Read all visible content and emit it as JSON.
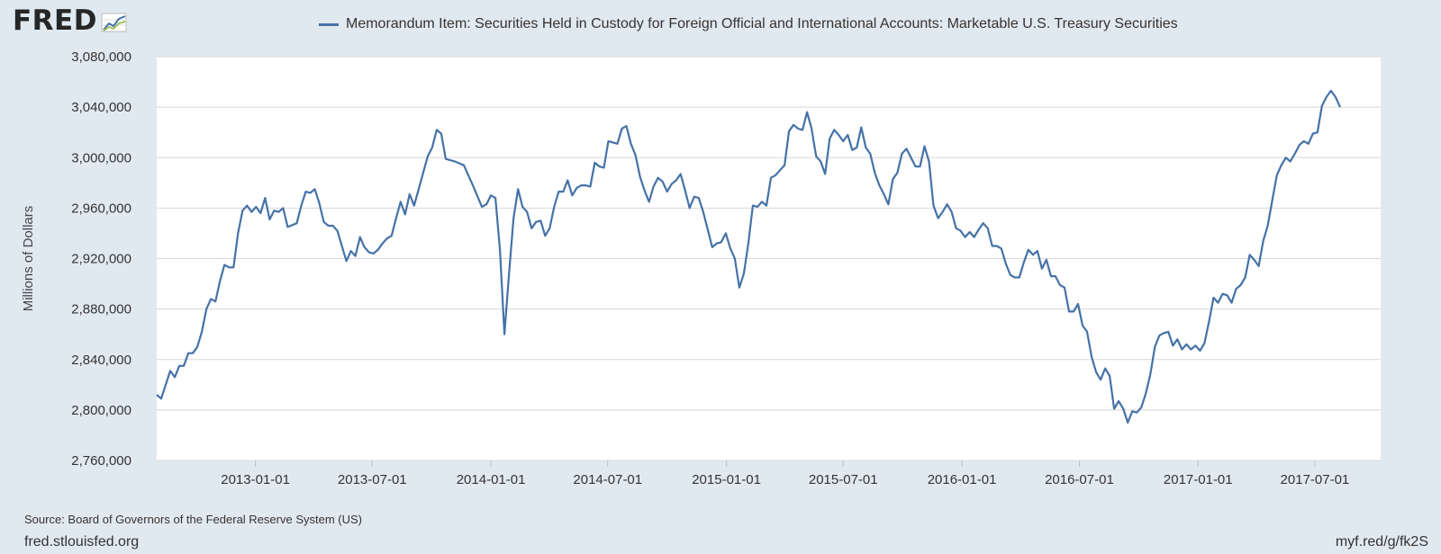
{
  "logo": {
    "text": "FRED"
  },
  "footer": {
    "source": "Source: Board of Governors of the Federal Reserve System (US)",
    "site": "fred.stlouisfed.org",
    "short_url": "myf.red/g/fk2S"
  },
  "colors": {
    "series": "#4572a7",
    "background": "#e1e9f0",
    "plot_background": "#ffffff",
    "grid": "#d8d8d8"
  },
  "chart_data": {
    "type": "line",
    "title": "",
    "legend": "Memorandum Item: Securities Held in Custody for Foreign Official and International Accounts: Marketable U.S. Treasury Securities",
    "legend_position": "top",
    "xlabel": "",
    "ylabel": "Millions of Dollars",
    "ylim": [
      2760000,
      3080000
    ],
    "xlim": [
      "2012-08-01",
      "2017-10-11"
    ],
    "yticks": [
      2760000,
      2800000,
      2840000,
      2880000,
      2920000,
      2960000,
      3000000,
      3040000,
      3080000
    ],
    "ytick_labels": [
      "2,760,000",
      "2,800,000",
      "2,840,000",
      "2,880,000",
      "2,920,000",
      "2,960,000",
      "3,000,000",
      "3,040,000",
      "3,080,000"
    ],
    "xticks": [
      "2013-01-01",
      "2013-07-01",
      "2014-01-01",
      "2014-07-01",
      "2015-01-01",
      "2015-07-01",
      "2016-01-01",
      "2016-07-01",
      "2017-01-01",
      "2017-07-01"
    ],
    "grid": "horizontal",
    "series": [
      {
        "name": "Memorandum Item: Securities Held in Custody for Foreign Official and International Accounts: Marketable U.S. Treasury Securities",
        "points": [
          [
            "2012-08-01",
            2812000
          ],
          [
            "2012-08-08",
            2809000
          ],
          [
            "2012-08-15",
            2820000
          ],
          [
            "2012-08-22",
            2831000
          ],
          [
            "2012-08-29",
            2826000
          ],
          [
            "2012-09-05",
            2835000
          ],
          [
            "2012-09-12",
            2835000
          ],
          [
            "2012-09-19",
            2845000
          ],
          [
            "2012-09-26",
            2845000
          ],
          [
            "2012-10-03",
            2850000
          ],
          [
            "2012-10-10",
            2862000
          ],
          [
            "2012-10-17",
            2880000
          ],
          [
            "2012-10-24",
            2888000
          ],
          [
            "2012-10-31",
            2886000
          ],
          [
            "2012-11-07",
            2902000
          ],
          [
            "2012-11-14",
            2915000
          ],
          [
            "2012-11-21",
            2913000
          ],
          [
            "2012-11-28",
            2913000
          ],
          [
            "2012-12-05",
            2940000
          ],
          [
            "2012-12-12",
            2958000
          ],
          [
            "2012-12-19",
            2962000
          ],
          [
            "2012-12-26",
            2957000
          ],
          [
            "2013-01-02",
            2961000
          ],
          [
            "2013-01-09",
            2956000
          ],
          [
            "2013-01-16",
            2968000
          ],
          [
            "2013-01-23",
            2951000
          ],
          [
            "2013-01-30",
            2958000
          ],
          [
            "2013-02-06",
            2957000
          ],
          [
            "2013-02-13",
            2960000
          ],
          [
            "2013-02-20",
            2945000
          ],
          [
            "2013-03-06",
            2948000
          ],
          [
            "2013-03-13",
            2962000
          ],
          [
            "2013-03-20",
            2973000
          ],
          [
            "2013-03-27",
            2972000
          ],
          [
            "2013-04-03",
            2975000
          ],
          [
            "2013-04-10",
            2964000
          ],
          [
            "2013-04-17",
            2949000
          ],
          [
            "2013-04-24",
            2946000
          ],
          [
            "2013-05-01",
            2946000
          ],
          [
            "2013-05-08",
            2942000
          ],
          [
            "2013-05-15",
            2930000
          ],
          [
            "2013-05-22",
            2918000
          ],
          [
            "2013-05-29",
            2926000
          ],
          [
            "2013-06-05",
            2922000
          ],
          [
            "2013-06-12",
            2937000
          ],
          [
            "2013-06-19",
            2929000
          ],
          [
            "2013-06-26",
            2925000
          ],
          [
            "2013-07-03",
            2924000
          ],
          [
            "2013-07-10",
            2927000
          ],
          [
            "2013-07-17",
            2932000
          ],
          [
            "2013-07-24",
            2936000
          ],
          [
            "2013-07-31",
            2938000
          ],
          [
            "2013-08-07",
            2952000
          ],
          [
            "2013-08-14",
            2965000
          ],
          [
            "2013-08-21",
            2955000
          ],
          [
            "2013-08-28",
            2971000
          ],
          [
            "2013-09-04",
            2962000
          ],
          [
            "2013-09-11",
            2975000
          ],
          [
            "2013-09-18",
            2988000
          ],
          [
            "2013-09-25",
            3001000
          ],
          [
            "2013-10-02",
            3008000
          ],
          [
            "2013-10-09",
            3022000
          ],
          [
            "2013-10-16",
            3019000
          ],
          [
            "2013-10-23",
            2999000
          ],
          [
            "2013-11-06",
            2997000
          ],
          [
            "2013-11-20",
            2994000
          ],
          [
            "2013-12-04",
            2978000
          ],
          [
            "2013-12-18",
            2961000
          ],
          [
            "2013-12-25",
            2963000
          ],
          [
            "2014-01-01",
            2970000
          ],
          [
            "2014-01-08",
            2968000
          ],
          [
            "2014-01-15",
            2927000
          ],
          [
            "2014-01-22",
            2860000
          ],
          [
            "2014-01-29",
            2908000
          ],
          [
            "2014-02-05",
            2952000
          ],
          [
            "2014-02-12",
            2975000
          ],
          [
            "2014-02-19",
            2961000
          ],
          [
            "2014-02-26",
            2957000
          ],
          [
            "2014-03-05",
            2944000
          ],
          [
            "2014-03-12",
            2949000
          ],
          [
            "2014-03-19",
            2950000
          ],
          [
            "2014-03-26",
            2938000
          ],
          [
            "2014-04-02",
            2944000
          ],
          [
            "2014-04-09",
            2961000
          ],
          [
            "2014-04-16",
            2973000
          ],
          [
            "2014-04-23",
            2973000
          ],
          [
            "2014-04-30",
            2982000
          ],
          [
            "2014-05-07",
            2970000
          ],
          [
            "2014-05-14",
            2976000
          ],
          [
            "2014-05-21",
            2978000
          ],
          [
            "2014-05-28",
            2978000
          ],
          [
            "2014-06-04",
            2977000
          ],
          [
            "2014-06-11",
            2996000
          ],
          [
            "2014-06-18",
            2993000
          ],
          [
            "2014-06-25",
            2992000
          ],
          [
            "2014-07-02",
            3013000
          ],
          [
            "2014-07-09",
            3012000
          ],
          [
            "2014-07-16",
            3011000
          ],
          [
            "2014-07-23",
            3023000
          ],
          [
            "2014-07-30",
            3025000
          ],
          [
            "2014-08-06",
            3011000
          ],
          [
            "2014-08-13",
            3002000
          ],
          [
            "2014-08-20",
            2985000
          ],
          [
            "2014-08-27",
            2974000
          ],
          [
            "2014-09-03",
            2965000
          ],
          [
            "2014-09-10",
            2977000
          ],
          [
            "2014-09-17",
            2984000
          ],
          [
            "2014-09-24",
            2981000
          ],
          [
            "2014-10-01",
            2973000
          ],
          [
            "2014-10-08",
            2979000
          ],
          [
            "2014-10-15",
            2982000
          ],
          [
            "2014-10-22",
            2987000
          ],
          [
            "2014-10-29",
            2974000
          ],
          [
            "2014-11-05",
            2960000
          ],
          [
            "2014-11-12",
            2969000
          ],
          [
            "2014-11-19",
            2968000
          ],
          [
            "2014-11-26",
            2957000
          ],
          [
            "2014-12-03",
            2943000
          ],
          [
            "2014-12-10",
            2929000
          ],
          [
            "2014-12-17",
            2932000
          ],
          [
            "2014-12-24",
            2933000
          ],
          [
            "2014-12-31",
            2940000
          ],
          [
            "2015-01-07",
            2928000
          ],
          [
            "2015-01-14",
            2920000
          ],
          [
            "2015-01-21",
            2897000
          ],
          [
            "2015-01-28",
            2908000
          ],
          [
            "2015-02-04",
            2932000
          ],
          [
            "2015-02-11",
            2962000
          ],
          [
            "2015-02-18",
            2961000
          ],
          [
            "2015-02-25",
            2965000
          ],
          [
            "2015-03-04",
            2962000
          ],
          [
            "2015-03-11",
            2984000
          ],
          [
            "2015-03-18",
            2986000
          ],
          [
            "2015-03-25",
            2990000
          ],
          [
            "2015-04-01",
            2994000
          ],
          [
            "2015-04-08",
            3021000
          ],
          [
            "2015-04-15",
            3026000
          ],
          [
            "2015-04-22",
            3023000
          ],
          [
            "2015-04-29",
            3022000
          ],
          [
            "2015-05-06",
            3036000
          ],
          [
            "2015-05-13",
            3023000
          ],
          [
            "2015-05-20",
            3001000
          ],
          [
            "2015-05-27",
            2997000
          ],
          [
            "2015-06-03",
            2987000
          ],
          [
            "2015-06-10",
            3015000
          ],
          [
            "2015-06-17",
            3022000
          ],
          [
            "2015-06-24",
            3018000
          ],
          [
            "2015-07-01",
            3013000
          ],
          [
            "2015-07-08",
            3018000
          ],
          [
            "2015-07-15",
            3006000
          ],
          [
            "2015-07-22",
            3008000
          ],
          [
            "2015-07-29",
            3024000
          ],
          [
            "2015-08-05",
            3008000
          ],
          [
            "2015-08-12",
            3003000
          ],
          [
            "2015-08-19",
            2988000
          ],
          [
            "2015-08-26",
            2978000
          ],
          [
            "2015-09-02",
            2971000
          ],
          [
            "2015-09-09",
            2963000
          ],
          [
            "2015-09-16",
            2983000
          ],
          [
            "2015-09-23",
            2988000
          ],
          [
            "2015-09-30",
            3003000
          ],
          [
            "2015-10-07",
            3007000
          ],
          [
            "2015-10-14",
            3000000
          ],
          [
            "2015-10-21",
            2993000
          ],
          [
            "2015-10-28",
            2993000
          ],
          [
            "2015-11-04",
            3009000
          ],
          [
            "2015-11-11",
            2997000
          ],
          [
            "2015-11-18",
            2962000
          ],
          [
            "2015-11-25",
            2952000
          ],
          [
            "2015-12-02",
            2957000
          ],
          [
            "2015-12-09",
            2963000
          ],
          [
            "2015-12-16",
            2957000
          ],
          [
            "2015-12-23",
            2944000
          ],
          [
            "2015-12-30",
            2942000
          ],
          [
            "2016-01-06",
            2937000
          ],
          [
            "2016-01-13",
            2941000
          ],
          [
            "2016-01-20",
            2937000
          ],
          [
            "2016-01-27",
            2943000
          ],
          [
            "2016-02-03",
            2948000
          ],
          [
            "2016-02-10",
            2944000
          ],
          [
            "2016-02-17",
            2930000
          ],
          [
            "2016-02-24",
            2930000
          ],
          [
            "2016-03-02",
            2928000
          ],
          [
            "2016-03-09",
            2916000
          ],
          [
            "2016-03-16",
            2907000
          ],
          [
            "2016-03-23",
            2905000
          ],
          [
            "2016-03-30",
            2905000
          ],
          [
            "2016-04-06",
            2917000
          ],
          [
            "2016-04-13",
            2927000
          ],
          [
            "2016-04-20",
            2923000
          ],
          [
            "2016-04-27",
            2926000
          ],
          [
            "2016-05-04",
            2912000
          ],
          [
            "2016-05-11",
            2919000
          ],
          [
            "2016-05-18",
            2906000
          ],
          [
            "2016-05-25",
            2906000
          ],
          [
            "2016-06-01",
            2899000
          ],
          [
            "2016-06-08",
            2897000
          ],
          [
            "2016-06-15",
            2878000
          ],
          [
            "2016-06-22",
            2878000
          ],
          [
            "2016-06-29",
            2884000
          ],
          [
            "2016-07-06",
            2867000
          ],
          [
            "2016-07-13",
            2862000
          ],
          [
            "2016-07-20",
            2842000
          ],
          [
            "2016-07-27",
            2830000
          ],
          [
            "2016-08-03",
            2824000
          ],
          [
            "2016-08-10",
            2833000
          ],
          [
            "2016-08-17",
            2827000
          ],
          [
            "2016-08-24",
            2801000
          ],
          [
            "2016-08-31",
            2807000
          ],
          [
            "2016-09-07",
            2801000
          ],
          [
            "2016-09-14",
            2790000
          ],
          [
            "2016-09-21",
            2799000
          ],
          [
            "2016-09-28",
            2798000
          ],
          [
            "2016-10-05",
            2802000
          ],
          [
            "2016-10-12",
            2813000
          ],
          [
            "2016-10-19",
            2828000
          ],
          [
            "2016-10-26",
            2850000
          ],
          [
            "2016-11-02",
            2859000
          ],
          [
            "2016-11-09",
            2861000
          ],
          [
            "2016-11-16",
            2862000
          ],
          [
            "2016-11-23",
            2851000
          ],
          [
            "2016-11-30",
            2856000
          ],
          [
            "2016-12-07",
            2848000
          ],
          [
            "2016-12-14",
            2852000
          ],
          [
            "2016-12-21",
            2848000
          ],
          [
            "2016-12-28",
            2851000
          ],
          [
            "2017-01-04",
            2847000
          ],
          [
            "2017-01-11",
            2853000
          ],
          [
            "2017-01-18",
            2870000
          ],
          [
            "2017-01-25",
            2889000
          ],
          [
            "2017-02-01",
            2885000
          ],
          [
            "2017-02-08",
            2892000
          ],
          [
            "2017-02-15",
            2891000
          ],
          [
            "2017-02-22",
            2885000
          ],
          [
            "2017-03-01",
            2896000
          ],
          [
            "2017-03-08",
            2899000
          ],
          [
            "2017-03-15",
            2905000
          ],
          [
            "2017-03-22",
            2923000
          ],
          [
            "2017-03-29",
            2919000
          ],
          [
            "2017-04-05",
            2914000
          ],
          [
            "2017-04-12",
            2934000
          ],
          [
            "2017-04-19",
            2946000
          ],
          [
            "2017-04-26",
            2966000
          ],
          [
            "2017-05-03",
            2986000
          ],
          [
            "2017-05-10",
            2994000
          ],
          [
            "2017-05-17",
            3000000
          ],
          [
            "2017-05-24",
            2997000
          ],
          [
            "2017-05-31",
            3003000
          ],
          [
            "2017-06-07",
            3010000
          ],
          [
            "2017-06-14",
            3013000
          ],
          [
            "2017-06-21",
            3011000
          ],
          [
            "2017-06-28",
            3019000
          ],
          [
            "2017-07-05",
            3020000
          ],
          [
            "2017-07-12",
            3041000
          ],
          [
            "2017-07-19",
            3048000
          ],
          [
            "2017-07-26",
            3053000
          ],
          [
            "2017-08-02",
            3048000
          ],
          [
            "2017-08-09",
            3040000
          ]
        ]
      }
    ]
  }
}
